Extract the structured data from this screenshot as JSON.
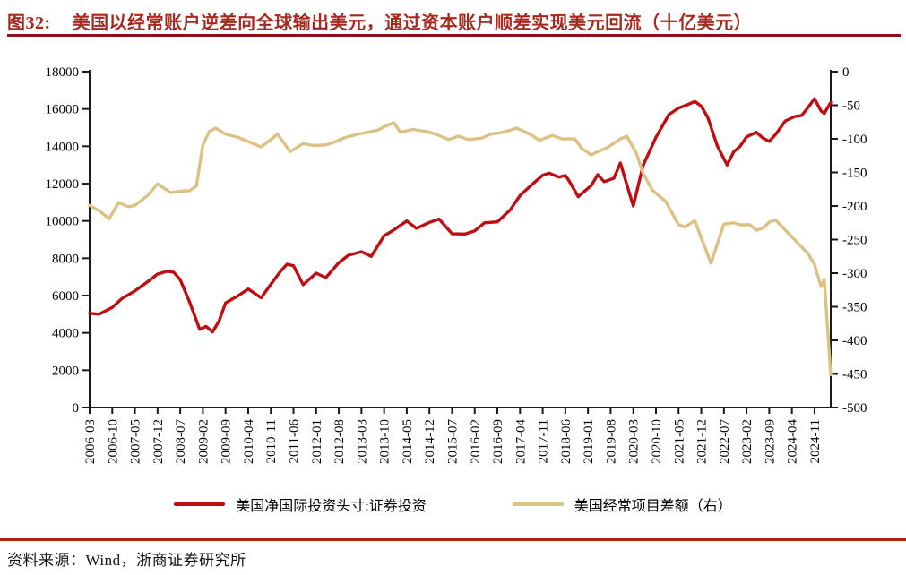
{
  "header": {
    "figure_label": "图32:",
    "title": "美国以经常账户逆差向全球输出美元，通过资本账户顺差实现美元回流（十亿美元）"
  },
  "footer": {
    "source": "资料来源：Wind，浙商证券研究所"
  },
  "colors": {
    "series_red": "#C00D12",
    "series_tan": "#DCC184",
    "title_red": "#A6291F",
    "top_rule_red": "#8E1212",
    "footer_rule_red": "#B02015",
    "axis_black": "#1a1a1a"
  },
  "chart_data": {
    "type": "line",
    "x_labels": [
      "2006-03",
      "2006-10",
      "2007-05",
      "2007-12",
      "2008-07",
      "2009-02",
      "2009-09",
      "2010-04",
      "2010-11",
      "2011-06",
      "2012-01",
      "2012-08",
      "2013-03",
      "2013-10",
      "2014-05",
      "2014-12",
      "2015-07",
      "2016-02",
      "2016-09",
      "2017-04",
      "2017-11",
      "2018-06",
      "2019-01",
      "2019-08",
      "2020-03",
      "2020-10",
      "2021-05",
      "2021-12",
      "2022-07",
      "2023-02",
      "2023-09",
      "2024-04",
      "2024-11"
    ],
    "x_label_month_step": 7,
    "x_range_months": [
      0,
      229
    ],
    "left_axis": {
      "min": 0,
      "max": 18000,
      "step": 2000,
      "tick_labels": [
        "18000",
        "16000",
        "14000",
        "12000",
        "10000",
        "8000",
        "6000",
        "4000",
        "2000",
        "0"
      ]
    },
    "right_axis": {
      "min": -500,
      "max": 0,
      "step": 50,
      "tick_labels": [
        "0",
        "-50",
        "-100",
        "-150",
        "-200",
        "-250",
        "-300",
        "-350",
        "-400",
        "-450",
        "-500"
      ]
    },
    "grid": false,
    "legend_position": "bottom",
    "series": [
      {
        "name": "美国净国际投资头寸:证券投资",
        "axis": "left",
        "color_key": "series_red",
        "points": [
          [
            0,
            5050
          ],
          [
            3,
            5000
          ],
          [
            7,
            5360
          ],
          [
            10,
            5840
          ],
          [
            14,
            6250
          ],
          [
            18,
            6750
          ],
          [
            21,
            7150
          ],
          [
            24,
            7300
          ],
          [
            26,
            7250
          ],
          [
            28,
            6850
          ],
          [
            31,
            5600
          ],
          [
            34,
            4190
          ],
          [
            36,
            4350
          ],
          [
            38,
            4050
          ],
          [
            40,
            4640
          ],
          [
            42,
            5600
          ],
          [
            46,
            6000
          ],
          [
            49,
            6350
          ],
          [
            53,
            5880
          ],
          [
            56,
            6600
          ],
          [
            59,
            7300
          ],
          [
            61,
            7680
          ],
          [
            63,
            7600
          ],
          [
            66,
            6580
          ],
          [
            70,
            7200
          ],
          [
            73,
            6960
          ],
          [
            77,
            7760
          ],
          [
            80,
            8160
          ],
          [
            84,
            8350
          ],
          [
            87,
            8100
          ],
          [
            91,
            9200
          ],
          [
            94,
            9520
          ],
          [
            98,
            10000
          ],
          [
            101,
            9600
          ],
          [
            105,
            9920
          ],
          [
            108,
            10100
          ],
          [
            112,
            9310
          ],
          [
            116,
            9300
          ],
          [
            119,
            9470
          ],
          [
            122,
            9900
          ],
          [
            126,
            9950
          ],
          [
            130,
            10600
          ],
          [
            133,
            11360
          ],
          [
            137,
            12000
          ],
          [
            140,
            12450
          ],
          [
            142,
            12560
          ],
          [
            145,
            12350
          ],
          [
            147,
            12430
          ],
          [
            148,
            12190
          ],
          [
            151,
            11300
          ],
          [
            155,
            11900
          ],
          [
            157,
            12480
          ],
          [
            159,
            12100
          ],
          [
            162,
            12290
          ],
          [
            164,
            13100
          ],
          [
            168,
            10800
          ],
          [
            171,
            12960
          ],
          [
            175,
            14480
          ],
          [
            179,
            15700
          ],
          [
            182,
            16050
          ],
          [
            185,
            16250
          ],
          [
            187,
            16400
          ],
          [
            189,
            16150
          ],
          [
            191,
            15550
          ],
          [
            194,
            14000
          ],
          [
            197,
            13000
          ],
          [
            199,
            13700
          ],
          [
            201,
            14000
          ],
          [
            203,
            14500
          ],
          [
            206,
            14750
          ],
          [
            208,
            14450
          ],
          [
            210,
            14260
          ],
          [
            212,
            14640
          ],
          [
            215,
            15360
          ],
          [
            218,
            15600
          ],
          [
            220,
            15650
          ],
          [
            222,
            16080
          ],
          [
            224,
            16550
          ],
          [
            226,
            15900
          ],
          [
            227,
            15760
          ],
          [
            229,
            16350
          ]
        ]
      },
      {
        "name": "美国经常项目差额（右）",
        "axis": "right",
        "color_key": "series_tan",
        "points": [
          [
            0,
            -199
          ],
          [
            3,
            -207
          ],
          [
            6,
            -219
          ],
          [
            9,
            -195
          ],
          [
            12,
            -201
          ],
          [
            14,
            -199
          ],
          [
            18,
            -184
          ],
          [
            21,
            -167
          ],
          [
            25,
            -180
          ],
          [
            28,
            -178
          ],
          [
            31,
            -177
          ],
          [
            33,
            -170
          ],
          [
            35,
            -109
          ],
          [
            37,
            -89
          ],
          [
            39,
            -84
          ],
          [
            42,
            -93
          ],
          [
            46,
            -98
          ],
          [
            49,
            -104
          ],
          [
            53,
            -112
          ],
          [
            56,
            -101
          ],
          [
            58,
            -93
          ],
          [
            62,
            -119
          ],
          [
            66,
            -107
          ],
          [
            69,
            -110
          ],
          [
            73,
            -109
          ],
          [
            75,
            -106
          ],
          [
            79,
            -98
          ],
          [
            83,
            -93
          ],
          [
            86,
            -90
          ],
          [
            89,
            -87
          ],
          [
            92,
            -80
          ],
          [
            94,
            -76
          ],
          [
            96,
            -90
          ],
          [
            100,
            -86
          ],
          [
            104,
            -89
          ],
          [
            107,
            -93
          ],
          [
            111,
            -101
          ],
          [
            114,
            -96
          ],
          [
            117,
            -101
          ],
          [
            121,
            -99
          ],
          [
            124,
            -93
          ],
          [
            128,
            -90
          ],
          [
            132,
            -84
          ],
          [
            136,
            -93
          ],
          [
            139,
            -102
          ],
          [
            143,
            -95
          ],
          [
            146,
            -100
          ],
          [
            150,
            -100
          ],
          [
            152,
            -114
          ],
          [
            155,
            -124
          ],
          [
            157,
            -119
          ],
          [
            160,
            -113
          ],
          [
            164,
            -100
          ],
          [
            166,
            -96
          ],
          [
            169,
            -122
          ],
          [
            171,
            -151
          ],
          [
            174,
            -177
          ],
          [
            178,
            -193
          ],
          [
            182,
            -228
          ],
          [
            184,
            -231
          ],
          [
            187,
            -222
          ],
          [
            192,
            -285
          ],
          [
            196,
            -227
          ],
          [
            199,
            -225
          ],
          [
            201,
            -228
          ],
          [
            204,
            -228
          ],
          [
            206,
            -236
          ],
          [
            208,
            -233
          ],
          [
            210,
            -224
          ],
          [
            212,
            -221
          ],
          [
            215,
            -236
          ],
          [
            218,
            -251
          ],
          [
            222,
            -271
          ],
          [
            224,
            -287
          ],
          [
            226,
            -320
          ],
          [
            227,
            -309
          ],
          [
            229,
            -451
          ]
        ]
      }
    ]
  }
}
